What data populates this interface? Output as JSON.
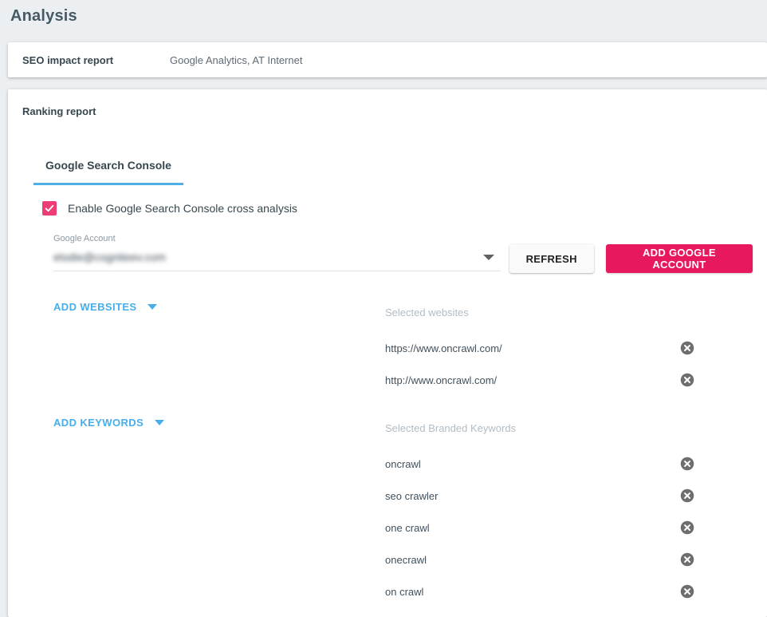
{
  "theme": {
    "page_bg": "#eceff1",
    "accent_pink": "#e8185e",
    "checkbox_pink": "#ee3d74",
    "accent_blue": "#47aee9",
    "tab_underline": "#4fb0e8"
  },
  "header": {
    "title": "Analysis"
  },
  "seo_impact_card": {
    "label": "SEO impact report",
    "sources": "Google Analytics, AT Internet"
  },
  "ranking_card": {
    "title": "Ranking report",
    "tabs": [
      {
        "label": "Google Search Console",
        "active": true
      }
    ],
    "enable_checkbox": {
      "checked": true,
      "label": "Enable Google Search Console cross analysis"
    },
    "google_account": {
      "label": "Google Account",
      "value": "elodie@cogniteev.com",
      "blurred": true
    },
    "buttons": {
      "refresh": "REFRESH",
      "add_account": "ADD GOOGLE ACCOUNT"
    },
    "websites": {
      "add_label": "ADD WEBSITES",
      "selected_label": "Selected websites",
      "items": [
        "https://www.oncrawl.com/",
        "http://www.oncrawl.com/"
      ]
    },
    "keywords": {
      "add_label": "ADD KEYWORDS",
      "selected_label": "Selected Branded Keywords",
      "items": [
        "oncrawl",
        "seo crawler",
        "one crawl",
        "onecrawl",
        "on crawl"
      ]
    }
  }
}
